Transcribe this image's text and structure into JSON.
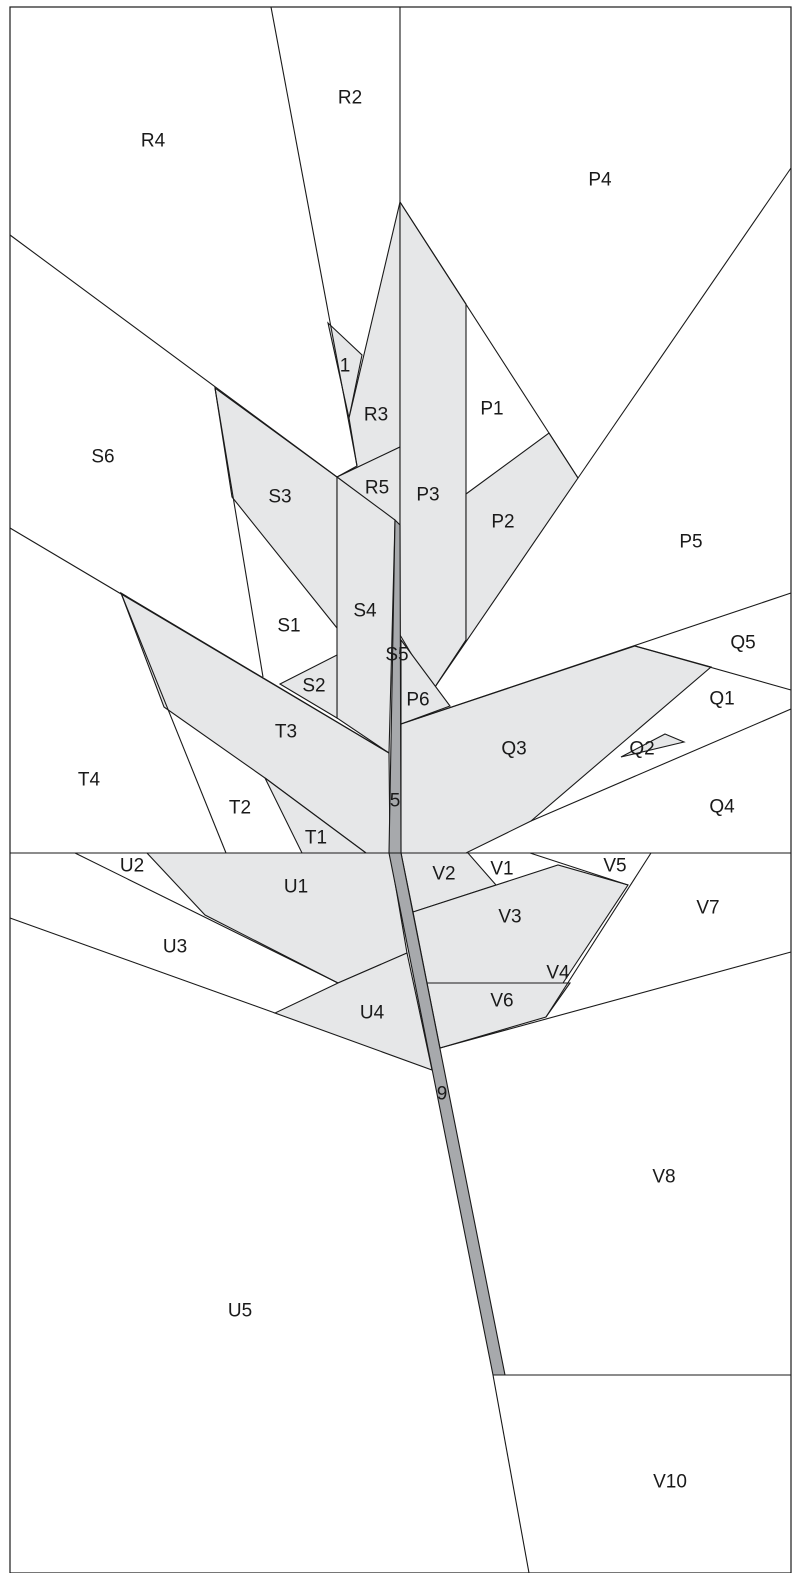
{
  "colors": {
    "background": "#ffffff",
    "shaded_piece": "#e6e7e8",
    "stem": "#a7a9ac",
    "line": "#1a1a1a"
  },
  "labels": {
    "R4": "R4",
    "R2": "R2",
    "P4": "P4",
    "S6": "S6",
    "one": "1",
    "R3": "R3",
    "P1": "P1",
    "R5": "R5",
    "P3": "P3",
    "S3": "S3",
    "P2": "P2",
    "P5": "P5",
    "S4": "S4",
    "S1": "S1",
    "Q5": "Q5",
    "S5": "S5",
    "S2": "S2",
    "P6": "P6",
    "Q1": "Q1",
    "T3": "T3",
    "Q3": "Q3",
    "Q2": "Q2",
    "T4": "T4",
    "five": "5",
    "T2": "T2",
    "Q4": "Q4",
    "T1": "T1",
    "U2": "U2",
    "V1": "V1",
    "V5": "V5",
    "V2": "V2",
    "U1": "U1",
    "V7": "V7",
    "V3": "V3",
    "U3": "U3",
    "V4": "V4",
    "V6": "V6",
    "U4": "U4",
    "nine": "9",
    "V8": "V8",
    "U5": "U5",
    "V10": "V10"
  }
}
